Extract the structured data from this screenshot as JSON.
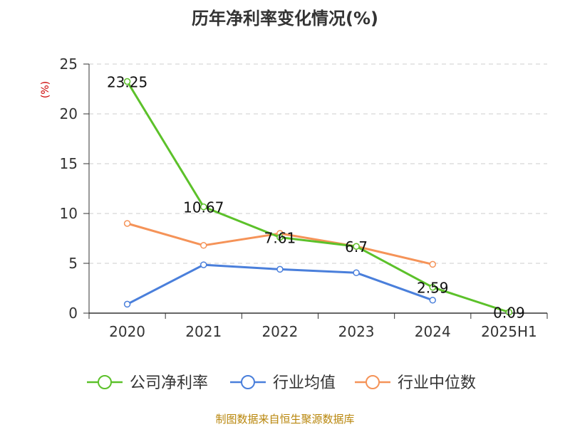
{
  "chart_data": {
    "type": "line",
    "title": "历年净利率变化情况(%)",
    "ylabel": "(%)",
    "x": [
      "2020",
      "2021",
      "2022",
      "2023",
      "2024",
      "2025H1"
    ],
    "yticks": [
      "0",
      "5",
      "10",
      "15",
      "20",
      "25"
    ],
    "ylim": [
      0,
      25
    ],
    "grid": true,
    "legend_position": "bottom",
    "series": [
      {
        "name": "公司净利率",
        "color": "#5cc12a",
        "values": [
          23.25,
          10.67,
          7.61,
          6.7,
          2.59,
          0.09
        ],
        "labels": [
          "23.25",
          "10.67",
          "7.61",
          "6.7",
          "2.59",
          "0.09"
        ]
      },
      {
        "name": "行业均值",
        "color": "#4a7fdb",
        "values": [
          0.9,
          4.85,
          4.4,
          4.05,
          1.3,
          null
        ]
      },
      {
        "name": "行业中位数",
        "color": "#f59358",
        "values": [
          9.0,
          6.8,
          8.0,
          6.7,
          4.9,
          null
        ]
      }
    ]
  },
  "footer": {
    "source": "制图数据来自恒生聚源数据库"
  }
}
